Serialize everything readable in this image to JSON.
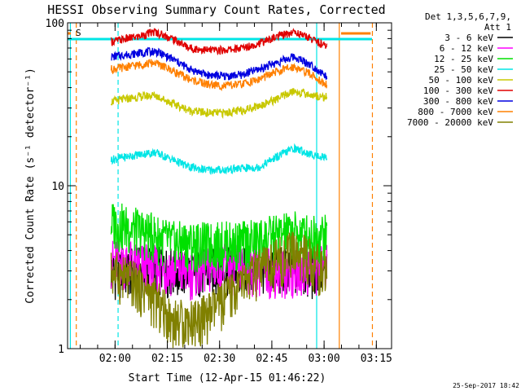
{
  "chart_data": {
    "type": "line",
    "title": "HESSI Observing Summary Count Rates, Corrected",
    "xlabel": "Start Time (12-Apr-15 01:46:22)",
    "ylabel": "Corrected Count Rate (s⁻¹ detector⁻¹)",
    "yscale": "log",
    "ylim": [
      1,
      100
    ],
    "xlim_minutes_after_0146": [
      0,
      93
    ],
    "x_ticks": [
      "02:00",
      "02:15",
      "02:30",
      "02:45",
      "03:00",
      "03:15"
    ],
    "y_ticks": [
      "1",
      "10",
      "100"
    ],
    "legend": {
      "placement": "right",
      "header": [
        "Det 1,3,5,6,7,9,",
        "Att 1"
      ]
    },
    "flag_label": "S",
    "timestamp": "25-Sep-2017 18:42",
    "data_window_minutes": [
      12.5,
      74.5
    ],
    "vertical_markers_minutes": [
      {
        "minute": 0.8,
        "color": "#00e5e5",
        "style": "solid"
      },
      {
        "minute": 2.5,
        "color": "#ff8000",
        "style": "dashed"
      },
      {
        "minute": 14.5,
        "color": "#00e5e5",
        "style": "dashed"
      },
      {
        "minute": 71.5,
        "color": "#00e5e5",
        "style": "solid"
      },
      {
        "minute": 78.0,
        "color": "#ff8000",
        "style": "solid"
      },
      {
        "minute": 87.5,
        "color": "#ff8000",
        "style": "dashed"
      }
    ],
    "series": [
      {
        "name": "3 - 6 keV",
        "color": "#000000",
        "x": [
          15,
          25,
          35,
          45,
          55,
          65,
          74
        ],
        "y": [
          3.0,
          3.2,
          3.0,
          3.1,
          3.2,
          3.1,
          3.0
        ]
      },
      {
        "name": "6 - 12 keV",
        "color": "#ff00ff",
        "x": [
          15,
          25,
          35,
          45,
          55,
          65,
          74
        ],
        "y": [
          3.5,
          3.2,
          3.0,
          3.3,
          3.1,
          3.0,
          3.3
        ]
      },
      {
        "name": "12 - 25 keV",
        "color": "#00e000",
        "x": [
          13,
          20,
          25,
          30,
          35,
          40,
          45,
          50,
          55,
          60,
          65,
          70,
          74
        ],
        "y": [
          6.0,
          5.4,
          5.0,
          4.5,
          4.5,
          4.4,
          4.5,
          4.5,
          4.7,
          5.0,
          5.2,
          5.0,
          5.0
        ]
      },
      {
        "name": "25 - 50 keV",
        "color": "#00e5e5",
        "x": [
          13,
          20,
          25,
          30,
          35,
          40,
          45,
          50,
          55,
          60,
          65,
          70,
          74
        ],
        "y": [
          14.5,
          15.5,
          16.0,
          14.5,
          13.0,
          12.5,
          12.5,
          12.8,
          13.0,
          15.0,
          17.0,
          15.5,
          15.0
        ]
      },
      {
        "name": "50 - 100 keV",
        "color": "#c8c800",
        "x": [
          13,
          20,
          25,
          30,
          35,
          40,
          45,
          50,
          55,
          60,
          65,
          70,
          74
        ],
        "y": [
          33,
          35,
          36,
          32,
          29,
          28,
          28,
          29,
          31,
          34,
          38,
          36,
          35
        ]
      },
      {
        "name": "100 - 300 keV",
        "color": "#e00000",
        "x": [
          13,
          20,
          25,
          30,
          35,
          40,
          45,
          50,
          55,
          60,
          65,
          70,
          74
        ],
        "y": [
          77,
          82,
          88,
          80,
          70,
          68,
          68,
          70,
          75,
          82,
          88,
          80,
          72
        ]
      },
      {
        "name": "300 - 800 keV",
        "color": "#0000e0",
        "x": [
          13,
          20,
          25,
          30,
          35,
          40,
          45,
          50,
          55,
          60,
          65,
          70,
          74
        ],
        "y": [
          62,
          65,
          67,
          60,
          52,
          48,
          47,
          48,
          52,
          57,
          62,
          55,
          47
        ]
      },
      {
        "name": "800 - 7000 keV",
        "color": "#ff8000",
        "x": [
          13,
          20,
          25,
          30,
          35,
          40,
          45,
          50,
          55,
          60,
          65,
          70,
          74
        ],
        "y": [
          52,
          55,
          57,
          51,
          45,
          42,
          41,
          42,
          45,
          50,
          54,
          48,
          42
        ]
      },
      {
        "name": "7000 - 20000 keV",
        "color": "#808000",
        "x": [
          13,
          20,
          25,
          30,
          35,
          40,
          45,
          50,
          55,
          60,
          65,
          70,
          74
        ],
        "y": [
          3.0,
          2.5,
          2.0,
          1.5,
          1.5,
          1.6,
          2.0,
          2.5,
          3.0,
          3.5,
          4.0,
          3.5,
          3.0
        ]
      }
    ]
  }
}
